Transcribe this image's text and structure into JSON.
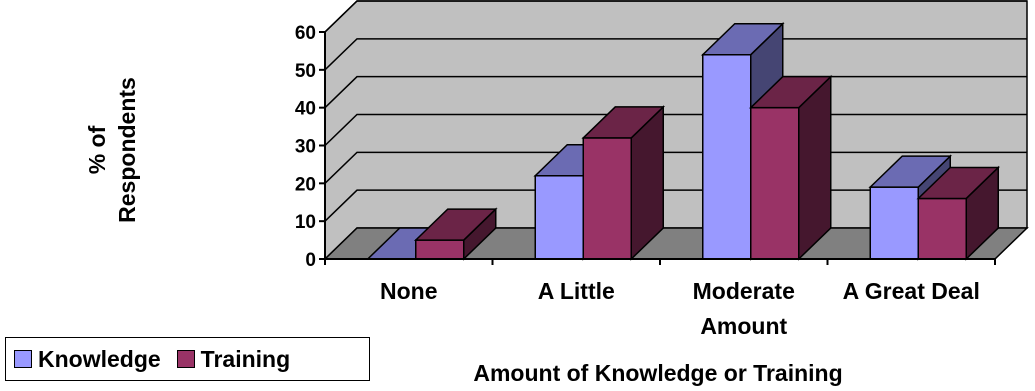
{
  "chart_data": {
    "type": "bar",
    "categories": [
      "None",
      "A Little",
      "Moderate Amount",
      "A Great Deal"
    ],
    "series": [
      {
        "name": "Knowledge",
        "values": [
          0,
          22,
          54,
          19
        ],
        "color": "#9999FF"
      },
      {
        "name": "Training",
        "values": [
          5,
          32,
          40,
          16
        ],
        "color": "#993366"
      }
    ],
    "xlabel": "Amount of Knowledge or Training",
    "ylabel_lines": [
      "% of",
      "Respondents"
    ],
    "ylim": [
      0,
      60
    ],
    "yticks": [
      "0",
      "10",
      "20",
      "30",
      "40",
      "50",
      "60"
    ],
    "grid": true,
    "legend_placement": "bottom-left",
    "colors": {
      "wall": "#C0C0C0",
      "floor": "#808080",
      "gridline": "#000000"
    }
  }
}
